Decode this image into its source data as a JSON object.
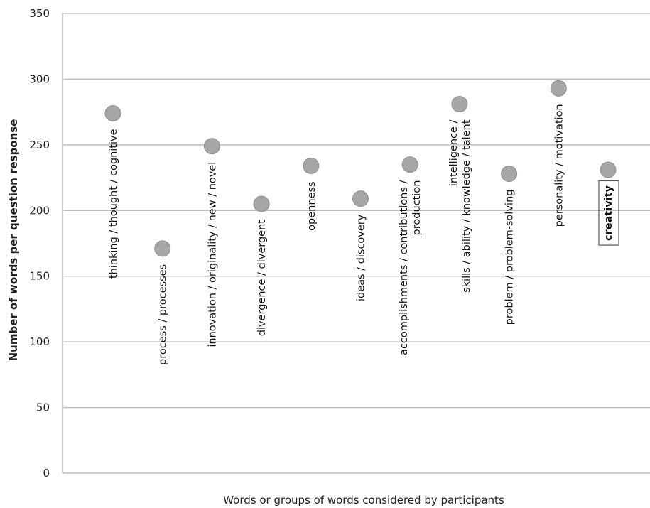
{
  "chart_data": {
    "type": "scatter",
    "title": "",
    "xlabel": "Words or groups of words considered by participants",
    "ylabel": "Number of words per question response",
    "ylim": [
      0,
      350
    ],
    "yticks": [
      0,
      50,
      100,
      150,
      200,
      250,
      300,
      350
    ],
    "grid": true,
    "categories": [
      {
        "lines": [
          "thinking / thought / cognitive"
        ],
        "value": 274,
        "bold": false,
        "boxed": false
      },
      {
        "lines": [
          "process / processes"
        ],
        "value": 171,
        "bold": false,
        "boxed": false
      },
      {
        "lines": [
          "innovation / originality / new / novel"
        ],
        "value": 249,
        "bold": false,
        "boxed": false
      },
      {
        "lines": [
          "divergence / divergent"
        ],
        "value": 205,
        "bold": false,
        "boxed": false
      },
      {
        "lines": [
          "openness"
        ],
        "value": 234,
        "bold": false,
        "boxed": false
      },
      {
        "lines": [
          "ideas / discovery"
        ],
        "value": 209,
        "bold": false,
        "boxed": false
      },
      {
        "lines": [
          "accomplishments / contributions /",
          "production"
        ],
        "value": 235,
        "bold": false,
        "boxed": false
      },
      {
        "lines": [
          "intelligence /",
          "skills / ability / knowledge / talent"
        ],
        "value": 281,
        "bold": false,
        "boxed": false
      },
      {
        "lines": [
          "problem / problem-solving"
        ],
        "value": 228,
        "bold": false,
        "boxed": false
      },
      {
        "lines": [
          "personality / motivation"
        ],
        "value": 293,
        "bold": false,
        "boxed": false
      },
      {
        "lines": [
          "creativity"
        ],
        "value": 231,
        "bold": true,
        "boxed": true
      }
    ]
  }
}
